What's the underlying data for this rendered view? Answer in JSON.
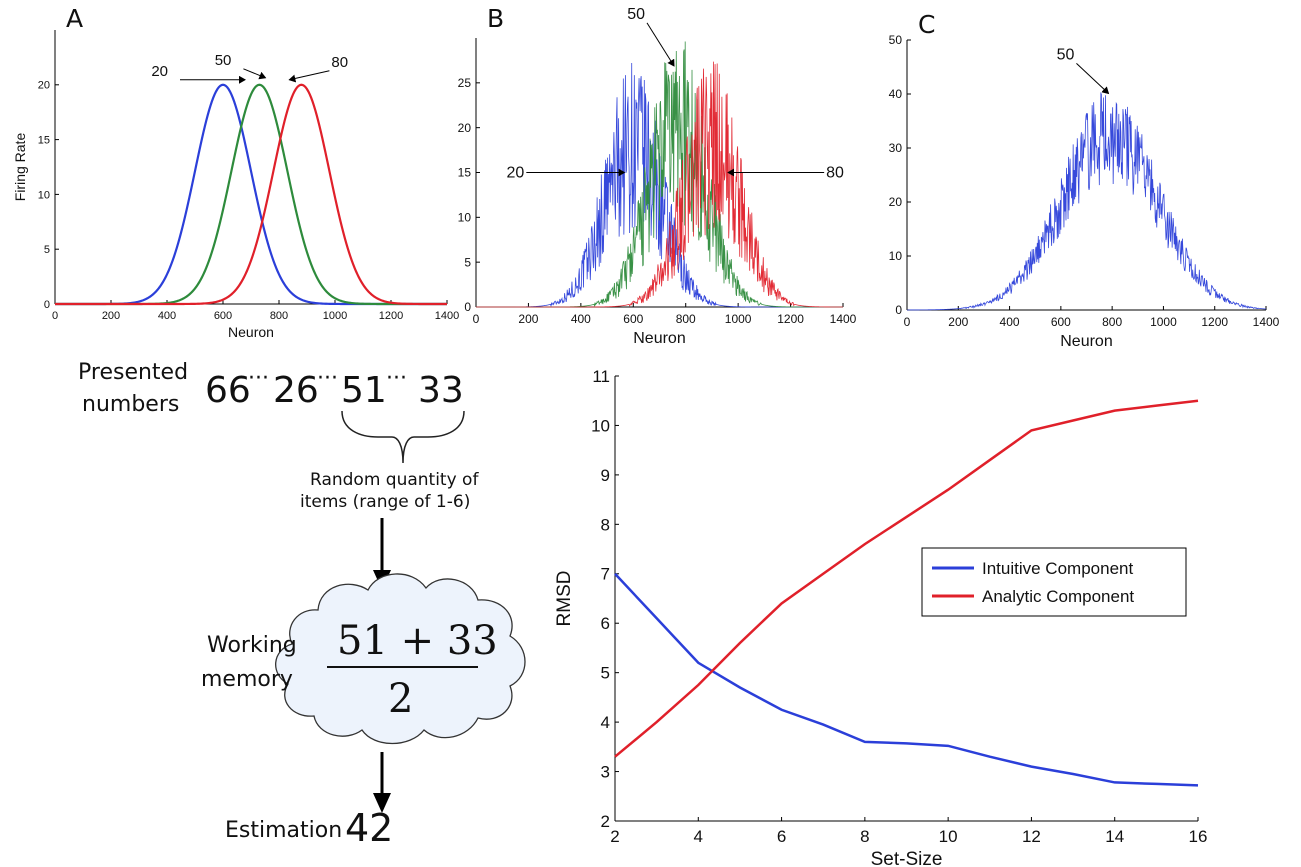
{
  "colors": {
    "blue": "#2b3fd9",
    "green": "#2e8b3c",
    "red": "#e0202a",
    "cloud_fill": "#edf3fc"
  },
  "panels": {
    "A": {
      "letter": "A"
    },
    "B": {
      "letter": "B"
    },
    "C": {
      "letter": "C"
    }
  },
  "diagram": {
    "presented_label_1": "Presented",
    "presented_label_2": "numbers",
    "sequence": [
      "66",
      "···",
      "26",
      "···",
      "51",
      "···",
      "33"
    ],
    "random_1": "Random quantity of",
    "random_2": "items (range of 1-6)",
    "working_1": "Working",
    "working_2": "memory",
    "numerator": "51 + 33",
    "denominator": "2",
    "estimation_label": "Estimation",
    "estimation_value": "42"
  },
  "chart_data": [
    {
      "panel": "A",
      "type": "line",
      "xlabel": "Neuron",
      "ylabel": "Firing Rate",
      "xlim": [
        0,
        1400
      ],
      "ylim": [
        0,
        25
      ],
      "xticks": [
        0,
        200,
        400,
        600,
        800,
        1000,
        1200,
        1400
      ],
      "yticks": [
        0,
        5,
        10,
        15,
        20
      ],
      "series": [
        {
          "name": "20",
          "color": "blue",
          "peak_x": 600,
          "peak_y": 20,
          "sd": 100
        },
        {
          "name": "50",
          "color": "green",
          "peak_x": 730,
          "peak_y": 20,
          "sd": 100
        },
        {
          "name": "80",
          "color": "red",
          "peak_x": 880,
          "peak_y": 20,
          "sd": 100
        }
      ],
      "annotations": [
        {
          "text": "20",
          "target": [
            600,
            20
          ]
        },
        {
          "text": "50",
          "target": [
            730,
            20
          ]
        },
        {
          "text": "80",
          "target": [
            880,
            20
          ]
        }
      ]
    },
    {
      "panel": "B",
      "type": "line",
      "xlabel": "Neuron",
      "xlim": [
        0,
        1400
      ],
      "ylim": [
        0,
        30
      ],
      "xticks": [
        0,
        200,
        400,
        600,
        800,
        1000,
        1200,
        1400
      ],
      "yticks": [
        0,
        5,
        10,
        15,
        20,
        25
      ],
      "series": [
        {
          "name": "20",
          "color": "blue",
          "peak_x": 600,
          "peak_y": 18,
          "sd": 110
        },
        {
          "name": "50",
          "color": "green",
          "peak_x": 770,
          "peak_y": 20,
          "sd": 110
        },
        {
          "name": "80",
          "color": "red",
          "peak_x": 900,
          "peak_y": 18,
          "sd": 110
        }
      ],
      "annotations": [
        {
          "text": "20",
          "target": [
            520,
            15
          ]
        },
        {
          "text": "50",
          "target": [
            740,
            26
          ]
        },
        {
          "text": "80",
          "target": [
            1000,
            15
          ]
        }
      ]
    },
    {
      "panel": "C",
      "type": "line",
      "xlabel": "Neuron",
      "xlim": [
        0,
        1400
      ],
      "ylim": [
        0,
        50
      ],
      "xticks": [
        0,
        200,
        400,
        600,
        800,
        1000,
        1200,
        1400
      ],
      "yticks": [
        0,
        10,
        20,
        30,
        40,
        50
      ],
      "series": [
        {
          "name": "50",
          "color": "blue",
          "peak_x": 790,
          "peak_y": 32,
          "sd": 190
        }
      ],
      "annotations": [
        {
          "text": "50",
          "target": [
            770,
            39
          ]
        }
      ]
    },
    {
      "panel": "D",
      "type": "line",
      "xlabel": "Set-Size",
      "ylabel": "RMSD",
      "xlim": [
        2,
        16
      ],
      "ylim": [
        2,
        11
      ],
      "xticks": [
        2,
        4,
        6,
        8,
        10,
        12,
        14,
        16
      ],
      "yticks": [
        2,
        3,
        4,
        5,
        6,
        7,
        8,
        9,
        10,
        11
      ],
      "legend_position": "center-right",
      "series": [
        {
          "name": "Intuitive Component",
          "color": "blue",
          "x": [
            2,
            3,
            4,
            5,
            6,
            7,
            8,
            9,
            10,
            11,
            12,
            13,
            14,
            15,
            16
          ],
          "y": [
            7.0,
            6.1,
            5.2,
            4.7,
            4.25,
            3.95,
            3.6,
            3.57,
            3.52,
            3.3,
            3.1,
            2.95,
            2.78,
            2.75,
            2.72
          ]
        },
        {
          "name": "Analytic Component",
          "color": "red",
          "x": [
            2,
            3,
            4,
            5,
            6,
            7,
            8,
            9,
            10,
            11,
            12,
            13,
            14,
            15,
            16
          ],
          "y": [
            3.3,
            4.0,
            4.75,
            5.6,
            6.4,
            7.0,
            7.6,
            8.15,
            8.7,
            9.3,
            9.9,
            10.1,
            10.3,
            10.4,
            10.5
          ]
        }
      ]
    }
  ]
}
